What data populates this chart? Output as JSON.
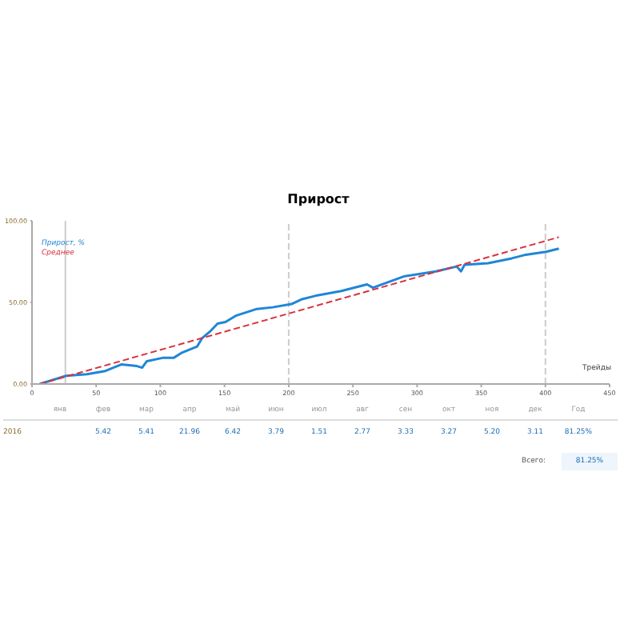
{
  "chart_data": [
    {
      "type": "line",
      "title": "Прирост",
      "xlabel": "Трейды",
      "xlim": [
        0,
        450
      ],
      "xticks": [
        0,
        50,
        100,
        150,
        200,
        250,
        300,
        350,
        400,
        450
      ],
      "ylim": [
        0,
        100
      ],
      "yticks": [
        {
          "value": 0,
          "label": "0.00"
        },
        {
          "value": 50,
          "label": "50.00"
        },
        {
          "value": 100,
          "label": "100.00"
        }
      ],
      "legend": "top left",
      "marker": "none",
      "series": [
        {
          "name": "Прирост, %",
          "color": "#1f86d6",
          "x": [
            6,
            26.6,
            42.9,
            57.2,
            69.5,
            81.7,
            85.8,
            89.5,
            101.7,
            110.3,
            116.4,
            122.5,
            128.7,
            132.4,
            138.5,
            144.6,
            150.7,
            159.3,
            175.2,
            187.5,
            202.2,
            210.4,
            220.6,
            241,
            261,
            265.6,
            290,
            314.6,
            330.9,
            334.2,
            337,
            355.4,
            373.8,
            383.6,
            400.4,
            410.5
          ],
          "values": [
            0,
            5,
            6,
            8,
            12,
            11,
            10,
            14,
            16,
            16,
            19,
            21,
            23,
            28,
            32,
            37,
            38,
            42,
            46,
            47,
            49,
            52,
            54,
            57,
            61,
            59,
            66,
            69,
            72,
            69,
            73,
            74,
            77,
            79,
            81,
            83
          ]
        },
        {
          "name": "Среднее",
          "color": "#d9333f",
          "type": "line",
          "line_style": "dashed",
          "x": [
            6,
            410.5
          ],
          "values": [
            0,
            90
          ]
        }
      ],
      "ref_lines": [
        {
          "axis": "x",
          "value": 26,
          "color": "#cccccc",
          "line_style": "solid"
        },
        {
          "axis": "x",
          "value": 200,
          "color": "#cccccc",
          "line_style": "dashed"
        },
        {
          "axis": "x",
          "value": 400,
          "color": "#cccccc",
          "line_style": "dashed"
        }
      ]
    },
    {
      "type": "other",
      "y_categories": [
        "2016"
      ],
      "categories": [
        "янв",
        "фев",
        "мар",
        "апр",
        "май",
        "июн",
        "июл",
        "авг",
        "сен",
        "окт",
        "ноя",
        "дек",
        "Год"
      ],
      "value_labels": [
        null,
        "5.42",
        "5.41",
        "21.96",
        "6.42",
        "3.79",
        "1.51",
        "2.77",
        "3.33",
        "3.27",
        "5.20",
        "3.11",
        "81.25%"
      ],
      "annotations": [
        "Всего:",
        "81.25%"
      ]
    }
  ]
}
